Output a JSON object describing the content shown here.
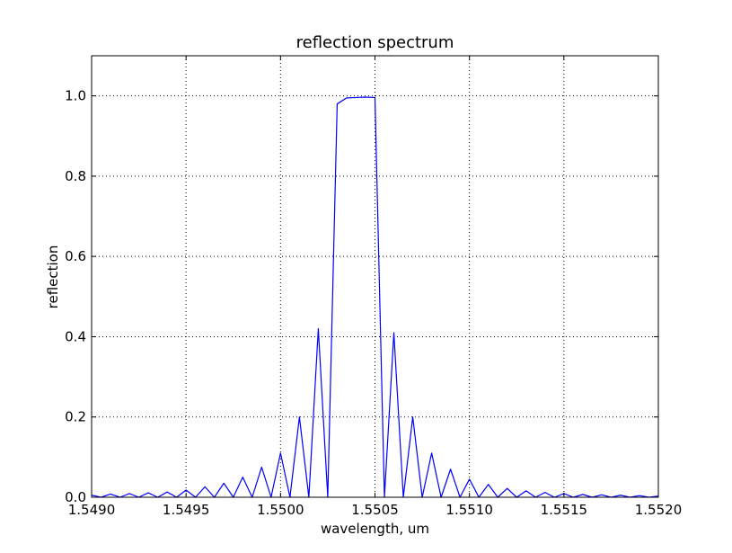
{
  "chart_data": {
    "type": "line",
    "title": "reflection spectrum",
    "xlabel": "wavelength, um",
    "ylabel": "reflection",
    "xlim": [
      1.549,
      1.552
    ],
    "ylim": [
      0.0,
      1.1
    ],
    "grid": true,
    "x_ticks": [
      "1.5490",
      "1.5495",
      "1.5500",
      "1.5505",
      "1.5510",
      "1.5515",
      "1.5520"
    ],
    "y_ticks": [
      "0.0",
      "0.2",
      "0.4",
      "0.6",
      "0.8",
      "1.0"
    ],
    "series": [
      {
        "color": "#0000ff",
        "x": [
          1.549,
          1.54905,
          1.5491,
          1.54915,
          1.5492,
          1.54925,
          1.5493,
          1.54935,
          1.5494,
          1.54945,
          1.5495,
          1.54955,
          1.5496,
          1.54965,
          1.5497,
          1.54975,
          1.5498,
          1.54985,
          1.5499,
          1.54995,
          1.55,
          1.55005,
          1.5501,
          1.55015,
          1.5502,
          1.55025,
          1.5503,
          1.55035,
          1.5504,
          1.55045,
          1.5505,
          1.55055,
          1.5506,
          1.55065,
          1.5507,
          1.55075,
          1.5508,
          1.55085,
          1.5509,
          1.55095,
          1.551,
          1.55105,
          1.5511,
          1.55115,
          1.5512,
          1.55125,
          1.5513,
          1.55135,
          1.5514,
          1.55145,
          1.5515,
          1.55155,
          1.5516,
          1.55165,
          1.5517,
          1.55175,
          1.5518,
          1.55185,
          1.5519,
          1.55195,
          1.552
        ],
        "y": [
          0.005,
          0.0,
          0.008,
          0.0,
          0.009,
          0.0,
          0.011,
          0.0,
          0.013,
          0.0,
          0.018,
          0.0,
          0.026,
          0.0,
          0.035,
          0.0,
          0.05,
          0.0,
          0.075,
          0.0,
          0.11,
          0.0,
          0.2,
          0.0,
          0.42,
          0.0,
          0.98,
          0.995,
          0.996,
          0.997,
          0.996,
          0.0,
          0.41,
          0.0,
          0.2,
          0.0,
          0.11,
          0.0,
          0.07,
          0.0,
          0.045,
          0.0,
          0.032,
          0.0,
          0.022,
          0.0,
          0.016,
          0.0,
          0.012,
          0.0,
          0.009,
          0.0,
          0.007,
          0.0,
          0.006,
          0.0,
          0.005,
          0.0,
          0.004,
          0.0,
          0.003
        ]
      }
    ]
  }
}
